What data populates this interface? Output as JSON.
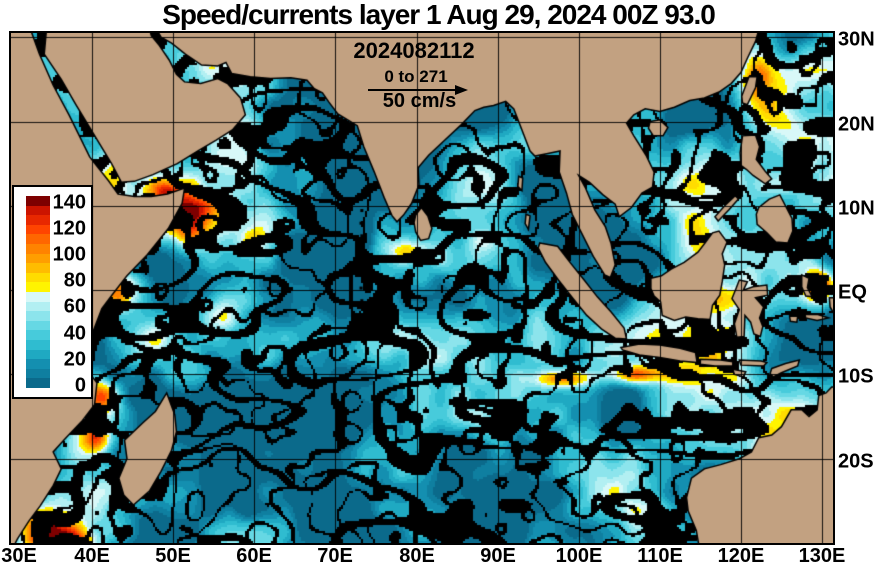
{
  "title": "Speed/currents layer 1 Aug 29, 2024 00Z 93.0",
  "annotation": {
    "timestamp": "2024082112",
    "vector_range": "0 to 271",
    "vector_scale": "50 cm/s"
  },
  "colorbar": {
    "units": "cm/s",
    "ticks": [
      "140",
      "120",
      "100",
      "80",
      "60",
      "40",
      "20",
      "0"
    ],
    "tick_values": [
      140,
      120,
      100,
      80,
      60,
      40,
      20,
      0
    ],
    "max_value": 145,
    "colors_bottom_to_top": [
      "#0B6A8B",
      "#0F7FA0",
      "#148FB0",
      "#1FA9C2",
      "#2FBCD0",
      "#47CBDB",
      "#66D8E4",
      "#8CE4EC",
      "#B2EFF2",
      "#D8F8F8",
      "#FFF400",
      "#FFDC00",
      "#FFBC00",
      "#FF9E00",
      "#FF8300",
      "#FF6600",
      "#FF4400",
      "#E82800",
      "#CC1400",
      "#7E0000"
    ]
  },
  "axes": {
    "lat_labels": [
      {
        "label": "30N",
        "deg": 30
      },
      {
        "label": "20N",
        "deg": 20
      },
      {
        "label": "10N",
        "deg": 10
      },
      {
        "label": "EQ",
        "deg": 0
      },
      {
        "label": "10S",
        "deg": -10
      },
      {
        "label": "20S",
        "deg": -20
      }
    ],
    "lon_labels": [
      {
        "label": "30E",
        "deg": 30
      },
      {
        "label": "40E",
        "deg": 40
      },
      {
        "label": "50E",
        "deg": 50
      },
      {
        "label": "60E",
        "deg": 60
      },
      {
        "label": "70E",
        "deg": 70
      },
      {
        "label": "80E",
        "deg": 80
      },
      {
        "label": "90E",
        "deg": 90
      },
      {
        "label": "100E",
        "deg": 100
      },
      {
        "label": "110E",
        "deg": 110
      },
      {
        "label": "120E",
        "deg": 120
      },
      {
        "label": "130E",
        "deg": 130
      }
    ],
    "grid_interval_deg": 10
  },
  "map": {
    "land_color": "#C2A181",
    "vector_color": "#000000",
    "background_color": "#FFFFFF",
    "region": {
      "lon_min": 30,
      "lon_max": 131.3,
      "lat_min": -30,
      "lat_max": 30.5
    }
  },
  "chart_data": {
    "type": "heatmap",
    "title": "Speed/currents layer 1 Aug 29, 2024 00Z 93.0",
    "field": "ocean current speed with overlaid current vectors",
    "colorbar_range": [
      0,
      140
    ],
    "colorbar_units": "cm/s",
    "x_ticks": [
      "30E",
      "40E",
      "50E",
      "60E",
      "70E",
      "80E",
      "90E",
      "100E",
      "110E",
      "120E",
      "130E"
    ],
    "y_ticks": [
      "30N",
      "20N",
      "10N",
      "EQ",
      "10S",
      "20S"
    ],
    "vector_reference": "50 cm/s",
    "vector_value_range": "0 to 271"
  }
}
